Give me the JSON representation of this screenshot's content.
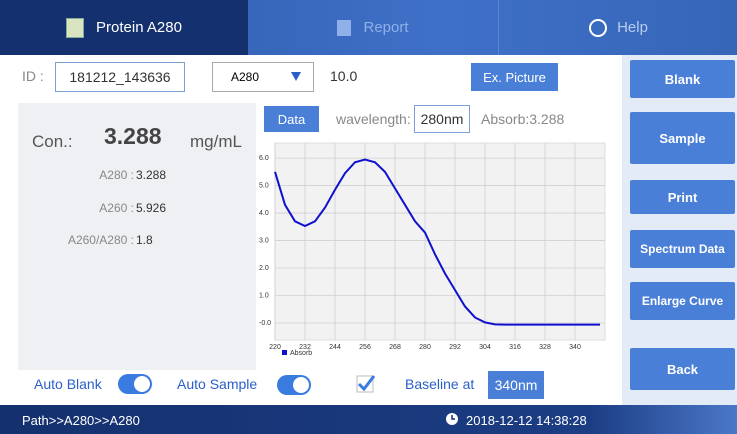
{
  "tabs": [
    "Protein A280",
    "Report",
    "Help"
  ],
  "id_label": "ID :",
  "id_value": "181212_143636",
  "select": "A280",
  "factor": "10.0",
  "ex_picture": "Ex. Picture",
  "side_buttons": [
    "Blank",
    "Sample",
    "Print",
    "Spectrum Data",
    "Enlarge Curve",
    "Back"
  ],
  "concentration": {
    "label": "Con.:",
    "value": "3.288",
    "unit": "mg/mL"
  },
  "readings": [
    {
      "label": "A280 :",
      "value": "3.288"
    },
    {
      "label": "A260 :",
      "value": "5.926"
    },
    {
      "label": "A260/A280 :",
      "value": "1.8"
    }
  ],
  "chart_header": {
    "data_button": "Data",
    "wavelength_label": "wavelength:",
    "wavelength_value": "280nm",
    "absorb": "Absorb:3.288"
  },
  "chart_data": {
    "type": "line",
    "x": [
      220,
      224,
      228,
      232,
      236,
      240,
      244,
      248,
      252,
      256,
      260,
      264,
      268,
      272,
      276,
      280,
      284,
      288,
      292,
      296,
      300,
      304,
      308,
      312,
      320,
      330,
      340,
      350
    ],
    "series": [
      {
        "name": "Absorb",
        "color": "#1010d0",
        "values": [
          5.5,
          4.3,
          3.7,
          3.53,
          3.7,
          4.2,
          4.85,
          5.45,
          5.85,
          5.95,
          5.85,
          5.5,
          4.9,
          4.3,
          3.7,
          3.29,
          2.5,
          1.8,
          1.2,
          0.6,
          0.2,
          0.02,
          -0.05,
          -0.06,
          -0.06,
          -0.06,
          -0.06,
          -0.06
        ]
      }
    ],
    "xlim": [
      220,
      352
    ],
    "ylim": [
      -0.62,
      6.55
    ],
    "xticks": [
      220,
      232,
      244,
      256,
      268,
      280,
      292,
      304,
      316,
      328,
      340
    ],
    "yticks": [
      {
        "value": 0,
        "label": "-0.0"
      },
      {
        "value": 1,
        "label": "1.0"
      },
      {
        "value": 2,
        "label": "2.0"
      },
      {
        "value": 3,
        "label": "3.0"
      },
      {
        "value": 4,
        "label": "4.0"
      },
      {
        "value": 5,
        "label": "5.0"
      },
      {
        "value": 6,
        "label": "6.0"
      }
    ],
    "grid": true
  },
  "bottom": {
    "auto_blank": "Auto Blank",
    "auto_sample": "Auto Sample",
    "baseline_label": "Baseline at",
    "baseline_value": "340nm"
  },
  "status": {
    "path": "Path>>A280>>A280",
    "datetime": "2018-12-12 14:38:28"
  }
}
